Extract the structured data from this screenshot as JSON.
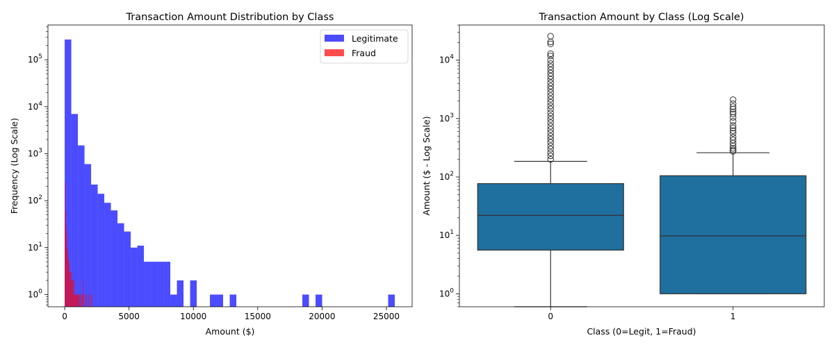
{
  "chart_data": [
    {
      "type": "histogram",
      "title": "Transaction Amount Distribution by Class",
      "xlabel": "Amount ($)",
      "ylabel": "Frequency (Log Scale)",
      "yscale": "log",
      "xlim": [
        -1300,
        27000
      ],
      "ylim": [
        0.55,
        550000
      ],
      "x_ticks": [
        0,
        5000,
        10000,
        15000,
        20000,
        25000
      ],
      "x_tick_labels": [
        "0",
        "5000",
        "10000",
        "15000",
        "20000",
        "25000"
      ],
      "y_ticks": [
        1,
        10,
        100,
        1000,
        10000,
        100000
      ],
      "y_tick_labels": [
        "10^0",
        "10^1",
        "10^2",
        "10^3",
        "10^4",
        "10^5"
      ],
      "legend_position": "top-right",
      "series": [
        {
          "name": "Legitimate",
          "color": "#0000ff",
          "alpha": 0.7,
          "bin_width": 513,
          "bins_start": [
            0,
            513,
            1026,
            1539,
            2052,
            2565,
            3078,
            3591,
            4104,
            4617,
            5130,
            5643,
            6156,
            6669,
            7182,
            7695,
            8208,
            8721,
            9234,
            9747,
            10260,
            10773,
            11286,
            11799,
            12312,
            12825,
            13338,
            13851,
            14364,
            14877,
            15390,
            15903,
            16416,
            16929,
            17442,
            17955,
            18468,
            18981,
            19494,
            20007,
            20520,
            21033,
            21546,
            22059,
            22572,
            23085,
            23598,
            24111,
            24624,
            25137
          ],
          "counts": [
            270000,
            7000,
            1500,
            600,
            220,
            140,
            90,
            62,
            33,
            22,
            10,
            11,
            5,
            5,
            5,
            5,
            1,
            2,
            0,
            2,
            0,
            0,
            1,
            1,
            0,
            1,
            0,
            0,
            0,
            0,
            0,
            0,
            0,
            0,
            0,
            0,
            1,
            0,
            1,
            0,
            0,
            0,
            0,
            0,
            0,
            0,
            0,
            0,
            0,
            1
          ]
        },
        {
          "name": "Fraud",
          "color": "#ff0000",
          "alpha": 0.7,
          "bin_width": 42.5,
          "bins_start": [
            0,
            42.5,
            85,
            127.5,
            170,
            212.5,
            255,
            297.5,
            340,
            382.5,
            425,
            467.5,
            510,
            552.5,
            595,
            637.5,
            680,
            722.5,
            765,
            807.5,
            850,
            892.5,
            935,
            977.5,
            1020,
            1062.5,
            1105,
            1147.5,
            1190,
            1232.5,
            1275,
            1317.5,
            1360,
            1402.5,
            1445,
            1487.5,
            1530,
            1572.5,
            1615,
            1657.5,
            1700,
            1742.5,
            1785,
            1827.5,
            1870,
            1912.5,
            1955,
            1997.5,
            2040,
            2082.5
          ],
          "counts": [
            250,
            60,
            30,
            20,
            10,
            8,
            6,
            5,
            4,
            3,
            3,
            2,
            3,
            2,
            2,
            2,
            1,
            2,
            1,
            1,
            1,
            1,
            1,
            1,
            1,
            1,
            1,
            0,
            1,
            0,
            1,
            0,
            1,
            1,
            2,
            0,
            0,
            1,
            0,
            0,
            1,
            0,
            0,
            1,
            0,
            0,
            0,
            1,
            0,
            1
          ]
        }
      ]
    },
    {
      "type": "boxplot",
      "title": "Transaction Amount by Class (Log Scale)",
      "xlabel": "Class (0=Legit, 1=Fraud)",
      "ylabel": "Amount ($ - Log Scale)",
      "yscale": "log",
      "ylim": [
        0.6,
        40000
      ],
      "y_ticks": [
        1,
        10,
        100,
        1000,
        10000
      ],
      "y_tick_labels": [
        "10^0",
        "10^1",
        "10^2",
        "10^3",
        "10^4"
      ],
      "categories": [
        "0",
        "1"
      ],
      "box_color": "#1f6f9f",
      "boxes": [
        {
          "category": "0",
          "whislo": 0.6,
          "q1": 5.6,
          "median": 22,
          "q3": 77,
          "whishi": 185,
          "fliers": [
            200,
            230,
            260,
            300,
            340,
            390,
            440,
            500,
            570,
            650,
            740,
            850,
            970,
            1100,
            1250,
            1450,
            1650,
            1900,
            2150,
            2450,
            2800,
            3200,
            3600,
            4100,
            4700,
            5300,
            6000,
            6800,
            7700,
            8700,
            10000,
            11800,
            12900,
            19000,
            20500,
            25700
          ]
        },
        {
          "category": "1",
          "whislo": 1,
          "q1": 1,
          "median": 9.8,
          "q3": 105,
          "whishi": 260,
          "fliers": [
            275,
            290,
            310,
            340,
            380,
            430,
            480,
            560,
            620,
            690,
            760,
            900,
            1050,
            1200,
            1300,
            1450,
            1600,
            1800,
            2100
          ]
        }
      ]
    }
  ]
}
